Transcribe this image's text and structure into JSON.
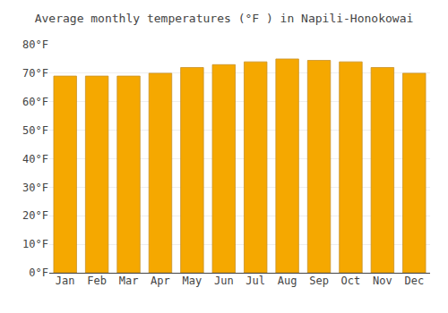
{
  "chart_data": {
    "type": "bar",
    "title": "Average monthly temperatures (°F ) in Napili-Honokowai",
    "categories": [
      "Jan",
      "Feb",
      "Mar",
      "Apr",
      "May",
      "Jun",
      "Jul",
      "Aug",
      "Sep",
      "Oct",
      "Nov",
      "Dec"
    ],
    "values": [
      69,
      69,
      69,
      70,
      72,
      73,
      74,
      75,
      74.5,
      74,
      72,
      70
    ],
    "color": "#F5A800",
    "ylim": [
      0,
      80
    ],
    "yticks": [
      {
        "value": 0,
        "label": "0°F"
      },
      {
        "value": 10,
        "label": "10°F"
      },
      {
        "value": 20,
        "label": "20°F"
      },
      {
        "value": 30,
        "label": "30°F"
      },
      {
        "value": 40,
        "label": "40°F"
      },
      {
        "value": 50,
        "label": "50°F"
      },
      {
        "value": 60,
        "label": "60°F"
      },
      {
        "value": 70,
        "label": "70°F"
      },
      {
        "value": 80,
        "label": "80°F"
      }
    ],
    "grid": true
  }
}
